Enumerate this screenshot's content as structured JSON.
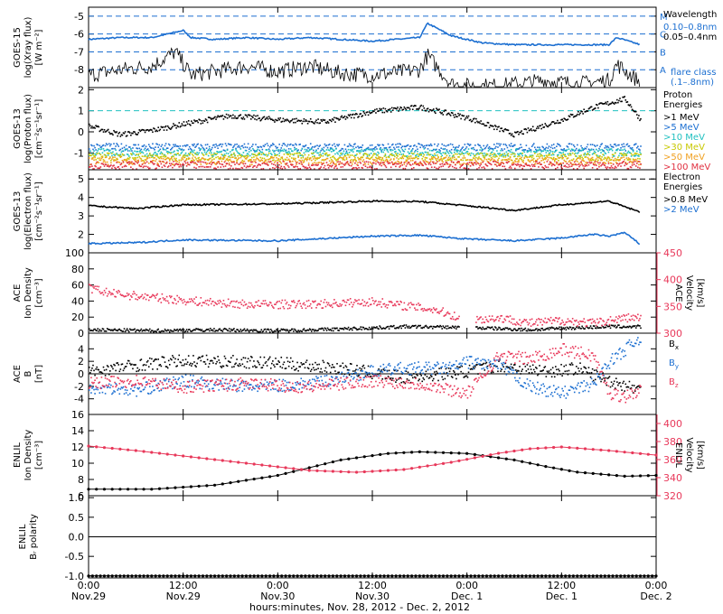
{
  "x_axis": {
    "ticks": [
      {
        "time": "0:00",
        "date": "Nov.29",
        "h": 0
      },
      {
        "time": "12:00",
        "date": "Nov.29",
        "h": 12
      },
      {
        "time": "0:00",
        "date": "Nov.30",
        "h": 24
      },
      {
        "time": "12:00",
        "date": "Nov.30",
        "h": 36
      },
      {
        "time": "0:00",
        "date": "Dec. 1",
        "h": 48
      },
      {
        "time": "12:00",
        "date": "Dec. 1",
        "h": 60
      },
      {
        "time": "0:00",
        "date": "Dec. 2",
        "h": 72
      }
    ],
    "label": "hours:minutes, Nov. 28, 2012 - Dec.  2, 2012"
  },
  "chart_data": [
    {
      "type": "line",
      "panel": "goes15-xray",
      "ylabel": [
        "GOES-15",
        "log(Xray flux)",
        "[W m⁻²]"
      ],
      "ylim": [
        -9,
        -4.5
      ],
      "yticks": [
        -5,
        -6,
        -7,
        -8
      ],
      "flare_levels": [
        {
          "label": "M",
          "value": -5
        },
        {
          "label": "C",
          "value": -6
        },
        {
          "label": "B",
          "value": -7
        },
        {
          "label": "A",
          "value": -8
        }
      ],
      "legend": {
        "title": "Wavelength",
        "entries": [
          {
            "label": "0.10–0.8nm",
            "color": "#1c6fd1"
          },
          {
            "label": "0.05–0.4nm",
            "color": "#000000"
          }
        ],
        "note": [
          "flare class",
          "(.1–.8nm)"
        ]
      },
      "series": [
        {
          "color": "#1c6fd1",
          "x": [
            0,
            4,
            8,
            12,
            13,
            16,
            20,
            24,
            28,
            32,
            36,
            42,
            43,
            46,
            50,
            54,
            58,
            62,
            66,
            67,
            70
          ],
          "y": [
            -6.3,
            -6.2,
            -6.2,
            -5.8,
            -6.2,
            -6.3,
            -6.2,
            -6.3,
            -6.2,
            -6.3,
            -6.4,
            -6.2,
            -5.4,
            -6.1,
            -6.5,
            -6.6,
            -6.6,
            -6.6,
            -6.6,
            -6.2,
            -6.6
          ]
        },
        {
          "color": "#000000",
          "x": [
            0,
            4,
            8,
            11,
            13,
            16,
            20,
            24,
            28,
            32,
            36,
            42,
            43,
            46,
            48,
            52,
            58,
            62,
            66,
            67,
            70
          ],
          "y": [
            -8.3,
            -8.0,
            -7.8,
            -7.0,
            -8.3,
            -8.1,
            -7.8,
            -8.1,
            -7.8,
            -8.2,
            -8.3,
            -8.0,
            -7.2,
            -8.8,
            -8.9,
            -8.9,
            -8.6,
            -8.8,
            -8.6,
            -7.7,
            -8.7
          ]
        }
      ]
    },
    {
      "type": "scatter",
      "panel": "goes13-proton",
      "ylabel": [
        "GOES-13",
        "log(Proton flux)",
        "[cm⁻²s⁻¹sr⁻¹]"
      ],
      "ylim": [
        -1.8,
        2.1
      ],
      "yticks": [
        2,
        1,
        0,
        -1
      ],
      "threshold": 1,
      "legend": {
        "title": [
          "Proton",
          "Energies"
        ],
        "entries": [
          {
            "label": ">1 MeV",
            "color": "#000000"
          },
          {
            "label": ">5 MeV",
            "color": "#1c6fd1"
          },
          {
            "label": ">10 MeV",
            "color": "#20c0c0"
          },
          {
            "label": ">30 MeV",
            "color": "#c8c800"
          },
          {
            "label": ">50 MeV",
            "color": "#f0a020"
          },
          {
            "label": ">100 MeV",
            "color": "#e03040"
          }
        ]
      },
      "series": [
        {
          "color": "#000000",
          "x": [
            0,
            4,
            8,
            12,
            18,
            24,
            30,
            36,
            42,
            48,
            54,
            60,
            64,
            68,
            70
          ],
          "y": [
            0.3,
            -0.1,
            0.1,
            0.4,
            0.8,
            0.6,
            0.5,
            1.0,
            1.2,
            0.7,
            -0.1,
            0.6,
            1.2,
            1.6,
            0.6
          ]
        },
        {
          "color": "#1c6fd1",
          "x": [
            0,
            70
          ],
          "y": [
            -0.7,
            -0.7
          ]
        },
        {
          "color": "#20c0c0",
          "x": [
            0,
            70
          ],
          "y": [
            -0.95,
            -0.95
          ]
        },
        {
          "color": "#c8c800",
          "x": [
            0,
            70
          ],
          "y": [
            -1.15,
            -1.15
          ]
        },
        {
          "color": "#f0a020",
          "x": [
            0,
            70
          ],
          "y": [
            -1.35,
            -1.35
          ]
        },
        {
          "color": "#e03040",
          "x": [
            0,
            70
          ],
          "y": [
            -1.55,
            -1.55
          ]
        }
      ]
    },
    {
      "type": "line",
      "panel": "goes13-electron",
      "ylabel": [
        "GOES-13",
        "log(Electron flux)",
        "[cm⁻²s⁻¹sr⁻¹]"
      ],
      "ylim": [
        1,
        5.5
      ],
      "yticks": [
        5,
        4,
        3,
        2
      ],
      "threshold": 5,
      "legend": {
        "title": [
          "Electron",
          "Energies"
        ],
        "entries": [
          {
            "label": ">0.8 MeV",
            "color": "#000000"
          },
          {
            "label": ">2 MeV",
            "color": "#1c6fd1"
          }
        ]
      },
      "series": [
        {
          "color": "#000000",
          "x": [
            0,
            6,
            12,
            24,
            36,
            42,
            48,
            54,
            60,
            66,
            70
          ],
          "y": [
            3.55,
            3.4,
            3.6,
            3.65,
            3.8,
            3.78,
            3.55,
            3.3,
            3.6,
            3.8,
            3.2
          ]
        },
        {
          "color": "#1c6fd1",
          "x": [
            0,
            6,
            12,
            24,
            36,
            42,
            48,
            54,
            60,
            64,
            66,
            68,
            70
          ],
          "y": [
            1.5,
            1.55,
            1.7,
            1.65,
            1.9,
            1.95,
            1.75,
            1.65,
            1.8,
            2.0,
            1.9,
            2.1,
            1.45
          ]
        }
      ]
    },
    {
      "type": "scatter",
      "panel": "ace-density-velocity",
      "ylabel": [
        "ACE",
        "Ion Density",
        "[cm⁻³]"
      ],
      "y2label": [
        "ACE",
        "Velocity",
        "[km/s]"
      ],
      "ylim": [
        0,
        100
      ],
      "yticks": [
        100,
        80,
        60,
        40,
        20,
        0
      ],
      "y2lim": [
        300,
        450
      ],
      "y2ticks": [
        450,
        400,
        350,
        300
      ],
      "series": [
        {
          "color": "#000000",
          "axis": "left",
          "x": [
            0,
            8,
            16,
            24,
            32,
            40,
            48,
            56,
            60,
            66,
            70
          ],
          "y": [
            5,
            4,
            5,
            4,
            6,
            9,
            8,
            5,
            7,
            9,
            9
          ]
        },
        {
          "color": "#e8385a",
          "axis": "right",
          "x": [
            0,
            3,
            8,
            14,
            20,
            28,
            36,
            44,
            48,
            52,
            56,
            60,
            64,
            68,
            70
          ],
          "y": [
            385,
            375,
            368,
            360,
            355,
            355,
            360,
            345,
            325,
            330,
            320,
            325,
            320,
            330,
            330
          ]
        }
      ]
    },
    {
      "type": "scatter",
      "panel": "ace-b",
      "ylabel": [
        "ACE",
        "B",
        "[nT]"
      ],
      "ylim": [
        -6.5,
        6.5
      ],
      "yticks": [
        4,
        2,
        0,
        -2,
        -4
      ],
      "legend": {
        "entries": [
          {
            "label": "B",
            "sub": "x",
            "color": "#000000"
          },
          {
            "label": "B",
            "sub": "y",
            "color": "#1c6fd1"
          },
          {
            "label": "B",
            "sub": "z",
            "color": "#e8385a"
          }
        ]
      },
      "series": [
        {
          "color": "#000000",
          "x": [
            0,
            6,
            12,
            20,
            24,
            32,
            40,
            48,
            52,
            58,
            62,
            66,
            70
          ],
          "y": [
            0.5,
            1.5,
            2.2,
            2.0,
            1.8,
            1.0,
            -0.5,
            0.5,
            1.5,
            0.5,
            1.0,
            -1.0,
            -2.5
          ]
        },
        {
          "color": "#1c6fd1",
          "x": [
            0,
            6,
            12,
            20,
            28,
            36,
            40,
            46,
            48,
            52,
            56,
            60,
            64,
            66,
            68,
            70
          ],
          "y": [
            -2.0,
            -2.5,
            -1.0,
            -2.0,
            -1.5,
            0.5,
            1.0,
            1.0,
            2.0,
            1.5,
            -2.0,
            -3.0,
            -1.5,
            2.0,
            4.0,
            6.0
          ]
        },
        {
          "color": "#e8385a",
          "x": [
            0,
            6,
            12,
            20,
            28,
            36,
            42,
            48,
            52,
            56,
            60,
            64,
            66,
            68,
            70
          ],
          "y": [
            -1.5,
            -1.0,
            -2.0,
            -1.5,
            -2.0,
            -1.0,
            -1.5,
            -3.0,
            3.0,
            2.5,
            4.0,
            3.0,
            -3.0,
            -3.5,
            -2.5
          ]
        }
      ]
    },
    {
      "type": "line",
      "panel": "enlil-density-velocity",
      "ylabel": [
        "ENLIL",
        "Ion Density",
        "[cm⁻³]"
      ],
      "y2label": [
        "ENLIL",
        "Velocity",
        "[km/s]"
      ],
      "ylim": [
        6,
        16
      ],
      "yticks": [
        16,
        14,
        12,
        10,
        8,
        6
      ],
      "y2lim": [
        320,
        410
      ],
      "y2ticks": [
        400,
        380,
        360,
        340,
        320
      ],
      "series": [
        {
          "color": "#000000",
          "axis": "left",
          "x": [
            0,
            8,
            16,
            24,
            32,
            38,
            42,
            48,
            54,
            58,
            62,
            68,
            72
          ],
          "y": [
            6.8,
            6.8,
            7.3,
            8.5,
            10.4,
            11.2,
            11.4,
            11.2,
            10.4,
            9.6,
            8.9,
            8.4,
            8.5
          ]
        },
        {
          "color": "#e8385a",
          "axis": "right",
          "x": [
            0,
            6,
            12,
            20,
            28,
            34,
            40,
            46,
            52,
            56,
            60,
            66,
            72
          ],
          "y": [
            375,
            370,
            364,
            356,
            348,
            346,
            349,
            357,
            367,
            372,
            374,
            370,
            365
          ]
        }
      ]
    },
    {
      "type": "line",
      "panel": "enlil-polarity",
      "ylabel": [
        "ENLIL",
        "Bᵣ polarity"
      ],
      "ylim": [
        -1.05,
        1.05
      ],
      "yticks": [
        1.0,
        0.5,
        0.0,
        -0.5,
        -1.0
      ],
      "series": [
        {
          "color": "#000000",
          "x": [
            0,
            72
          ],
          "y": [
            -1.0,
            -1.0
          ]
        }
      ]
    }
  ]
}
